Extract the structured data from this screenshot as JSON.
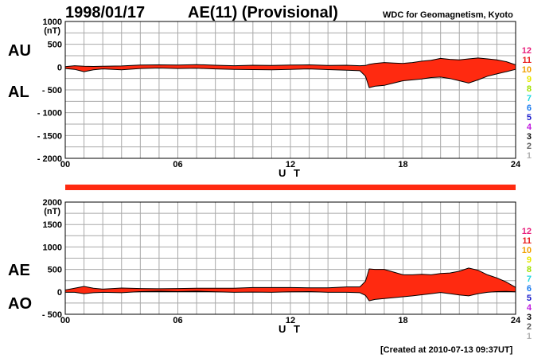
{
  "header": {
    "date": "1998/01/17",
    "title": "AE(11) (Provisional)",
    "source": "WDC for Geomagnetism, Kyoto"
  },
  "footer": {
    "created": "[Created at 2010-07-13 09:37UT]"
  },
  "colors": {
    "fill": "#ff2a10",
    "outline": "#000000",
    "grid": "#a8a8a8",
    "bar": "#ff2a10"
  },
  "stations": [
    {
      "label": "12",
      "color": "#e8207c"
    },
    {
      "label": "11",
      "color": "#e81c1c"
    },
    {
      "label": "10",
      "color": "#f0a000"
    },
    {
      "label": "9",
      "color": "#e8e800"
    },
    {
      "label": "8",
      "color": "#a0e000"
    },
    {
      "label": "7",
      "color": "#20d8e0"
    },
    {
      "label": "6",
      "color": "#1c7cf0"
    },
    {
      "label": "5",
      "color": "#1c1ccc"
    },
    {
      "label": "4",
      "color": "#c01ce0"
    },
    {
      "label": "3",
      "color": "#101010"
    },
    {
      "label": "2",
      "color": "#606060"
    },
    {
      "label": "1",
      "color": "#b0b0b0"
    }
  ],
  "chart_data": [
    {
      "type": "area",
      "unit": "(nT)",
      "xlabel": "U T",
      "xticks": [
        "00",
        "06",
        "12",
        "18",
        "24"
      ],
      "xlim": [
        0,
        24
      ],
      "yticks": [
        "1000",
        "500",
        "0",
        "- 500",
        "- 1000",
        "- 1500",
        "- 2000"
      ],
      "ylim": [
        -2000,
        1000
      ],
      "labels": {
        "upper": "AU",
        "lower": "AL"
      },
      "x": [
        0,
        0.5,
        1,
        1.5,
        2,
        3,
        4,
        5,
        6,
        7,
        8,
        9,
        10,
        11,
        12,
        13,
        14,
        15,
        15.7,
        16,
        16.2,
        16.5,
        17,
        17.5,
        18,
        18.5,
        19,
        19.5,
        20,
        20.5,
        21,
        21.5,
        22,
        22.5,
        23,
        23.5,
        24
      ],
      "upper": [
        10,
        30,
        20,
        15,
        20,
        25,
        45,
        50,
        45,
        55,
        40,
        30,
        40,
        35,
        45,
        50,
        35,
        40,
        30,
        35,
        60,
        80,
        100,
        90,
        80,
        100,
        130,
        150,
        190,
        170,
        160,
        180,
        200,
        180,
        160,
        120,
        50
      ],
      "lower": [
        -30,
        -50,
        -100,
        -60,
        -40,
        -60,
        -30,
        -20,
        -30,
        -25,
        -40,
        -50,
        -55,
        -60,
        -50,
        -40,
        -55,
        -70,
        -80,
        -200,
        -450,
        -420,
        -400,
        -350,
        -300,
        -280,
        -260,
        -230,
        -220,
        -250,
        -300,
        -350,
        -280,
        -200,
        -150,
        -100,
        -50
      ]
    },
    {
      "type": "area",
      "unit": "(nT)",
      "xlabel": "U T",
      "xticks": [
        "00",
        "06",
        "12",
        "18",
        "24"
      ],
      "xlim": [
        0,
        24
      ],
      "yticks": [
        "2000",
        "1500",
        "1000",
        "500",
        "0",
        "- 500"
      ],
      "ylim": [
        -500,
        2000
      ],
      "labels": {
        "upper": "AE",
        "lower": "AO"
      },
      "x": [
        0,
        0.5,
        1,
        1.5,
        2,
        3,
        4,
        5,
        6,
        7,
        8,
        9,
        10,
        11,
        12,
        13,
        14,
        15,
        15.7,
        16,
        16.2,
        16.5,
        17,
        17.5,
        18,
        18.5,
        19,
        19.5,
        20,
        20.5,
        21,
        21.5,
        22,
        22.5,
        23,
        23.5,
        24
      ],
      "upper": [
        40,
        80,
        120,
        80,
        60,
        85,
        75,
        70,
        75,
        80,
        80,
        80,
        95,
        95,
        95,
        90,
        90,
        110,
        110,
        235,
        510,
        500,
        500,
        440,
        380,
        380,
        390,
        380,
        410,
        420,
        460,
        530,
        480,
        380,
        310,
        220,
        100
      ],
      "lower": [
        -10,
        -10,
        -40,
        -20,
        -10,
        -20,
        5,
        15,
        5,
        15,
        0,
        -10,
        -5,
        -10,
        0,
        5,
        -10,
        -10,
        -20,
        -80,
        -200,
        -170,
        -150,
        -130,
        -110,
        -90,
        -65,
        -40,
        -15,
        -40,
        -70,
        -90,
        -40,
        -10,
        5,
        10,
        0
      ]
    }
  ]
}
